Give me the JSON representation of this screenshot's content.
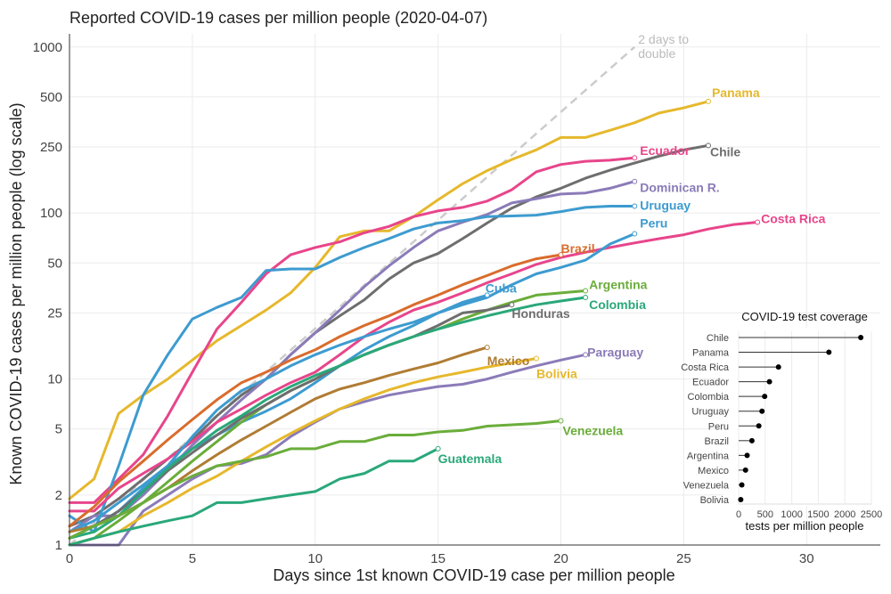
{
  "chart_data": {
    "type": "line",
    "title": "Reported COVID-19 cases per million people (2020-04-07)",
    "xlabel": "Days since 1st known COVID-19 case per million people",
    "ylabel": "Known COVID-19 cases per million people (log scale)",
    "y_scale": "log",
    "xlim": [
      0,
      33
    ],
    "ylim": [
      1,
      1200
    ],
    "x_ticks": [
      0,
      5,
      10,
      15,
      20,
      25,
      30
    ],
    "y_ticks": [
      1,
      2,
      5,
      10,
      25,
      50,
      100,
      250,
      500,
      1000
    ],
    "grid": true,
    "reference_line": {
      "label": "2 days to double",
      "label_lines": [
        "2 days to",
        "double"
      ],
      "color": "#cccccc",
      "x": [
        0,
        23
      ],
      "y": [
        1,
        1000
      ]
    },
    "series": [
      {
        "name": "Panama",
        "color": "#e6b82c",
        "x": [
          0,
          1,
          2,
          3,
          4,
          5,
          6,
          7,
          8,
          9,
          10,
          11,
          12,
          13,
          14,
          15,
          16,
          17,
          18,
          19,
          20,
          21,
          22,
          23,
          24,
          25,
          26
        ],
        "y": [
          1.9,
          2.5,
          6.2,
          8,
          10,
          13,
          17,
          21,
          26,
          33,
          47,
          72,
          78,
          78,
          95,
          120,
          150,
          180,
          210,
          240,
          285,
          285,
          315,
          350,
          400,
          430,
          470
        ]
      },
      {
        "name": "Chile",
        "color": "#6e6e6e",
        "x": [
          0,
          1,
          2,
          3,
          4,
          5,
          6,
          7,
          8,
          9,
          10,
          11,
          12,
          13,
          14,
          15,
          16,
          17,
          18,
          19,
          20,
          21,
          22,
          23,
          24,
          25,
          26
        ],
        "y": [
          1.3,
          1.5,
          1.9,
          2.5,
          3.3,
          4.3,
          6,
          8,
          10,
          14,
          19,
          24,
          30,
          40,
          50,
          57,
          70,
          87,
          107,
          125,
          141,
          162,
          181,
          200,
          220,
          240,
          255
        ]
      },
      {
        "name": "Ecuador",
        "color": "#e8458b",
        "x": [
          0,
          1,
          2,
          3,
          4,
          5,
          6,
          7,
          8,
          9,
          10,
          11,
          12,
          13,
          14,
          15,
          16,
          17,
          18,
          19,
          20,
          21,
          22,
          23
        ],
        "y": [
          1.8,
          1.8,
          2.5,
          3.5,
          6,
          11,
          20,
          29,
          43,
          56,
          62,
          67,
          76,
          83,
          95,
          103,
          108,
          118,
          138,
          177,
          196,
          205,
          208,
          215
        ]
      },
      {
        "name": "Dominican R.",
        "color": "#8b7bb8",
        "x": [
          0,
          1,
          2,
          3,
          4,
          5,
          6,
          7,
          8,
          9,
          10,
          11,
          12,
          13,
          14,
          15,
          16,
          17,
          18,
          19,
          20,
          21,
          22,
          23
        ],
        "y": [
          1.2,
          1.5,
          1.5,
          2.0,
          2.8,
          4.0,
          5.5,
          7.5,
          10,
          14,
          19,
          26,
          36,
          48,
          62,
          78,
          88,
          98,
          115,
          122,
          130,
          132,
          141,
          155
        ]
      },
      {
        "name": "Uruguay",
        "color": "#3d9bd0",
        "x": [
          0,
          1,
          2,
          3,
          4,
          5,
          6,
          7,
          8,
          9,
          10,
          11,
          12,
          13,
          14,
          15,
          16,
          17,
          18,
          19,
          20,
          21,
          22,
          23
        ],
        "y": [
          1.5,
          1.2,
          3.0,
          8.0,
          14,
          23,
          27,
          31,
          45,
          46,
          46,
          54,
          62,
          70,
          80,
          87,
          90,
          95,
          96,
          97,
          102,
          108,
          110,
          110
        ]
      },
      {
        "name": "Costa Rica",
        "color": "#e8458b",
        "x": [
          0,
          1,
          2,
          3,
          4,
          5,
          6,
          7,
          8,
          9,
          10,
          11,
          12,
          13,
          14,
          15,
          16,
          17,
          18,
          19,
          20,
          21,
          22,
          23,
          24,
          25,
          26,
          27,
          28
        ],
        "y": [
          1.6,
          1.6,
          2.2,
          2.7,
          3.3,
          4.2,
          5.5,
          6.6,
          8,
          9.5,
          11,
          14,
          18,
          22,
          26,
          29,
          33,
          38,
          43,
          49,
          54,
          58,
          62,
          66,
          70,
          74,
          80,
          85,
          88
        ]
      },
      {
        "name": "Peru",
        "color": "#3d9bd0",
        "x": [
          0,
          1,
          2,
          3,
          4,
          5,
          6,
          7,
          8,
          9,
          10,
          11,
          12,
          13,
          14,
          15,
          16,
          17,
          18,
          19,
          20,
          21,
          22,
          23
        ],
        "y": [
          1.2,
          1.4,
          1.8,
          2.3,
          3.0,
          3.8,
          4.6,
          5.5,
          6.4,
          7.6,
          9.5,
          12,
          15,
          18,
          21,
          25,
          28,
          31,
          37,
          43,
          47,
          52,
          65,
          75
        ]
      },
      {
        "name": "Brazil",
        "color": "#d96c2b",
        "x": [
          0,
          1,
          2,
          3,
          4,
          5,
          6,
          7,
          8,
          9,
          10,
          11,
          12,
          13,
          14,
          15,
          16,
          17,
          18,
          19,
          20
        ],
        "y": [
          1.3,
          1.7,
          2.4,
          3.2,
          4.3,
          5.7,
          7.5,
          9.5,
          11,
          13,
          15,
          18,
          21,
          24,
          28,
          32,
          37,
          42,
          48,
          53,
          56
        ]
      },
      {
        "name": "Cuba",
        "color": "#3d9bd0",
        "x": [
          0,
          1,
          2,
          3,
          4,
          5,
          6,
          7,
          8,
          9,
          10,
          11,
          12,
          13,
          14,
          15,
          16,
          17
        ],
        "y": [
          1.1,
          1.3,
          1.6,
          2.2,
          3.0,
          4.5,
          6.5,
          8.5,
          10,
          12,
          14,
          16,
          18,
          20,
          22,
          25,
          29,
          32
        ]
      },
      {
        "name": "Argentina",
        "color": "#6aad3a",
        "x": [
          0,
          1,
          2,
          3,
          4,
          5,
          6,
          7,
          8,
          9,
          10,
          11,
          12,
          13,
          14,
          15,
          16,
          17,
          18,
          19,
          20,
          21
        ],
        "y": [
          1.0,
          1.1,
          1.4,
          1.8,
          2.4,
          3.2,
          4.2,
          5.5,
          7,
          8.5,
          10,
          12,
          14,
          16,
          18,
          20,
          23,
          26,
          29,
          32,
          33,
          34
        ]
      },
      {
        "name": "Honduras",
        "color": "#6e6e6e",
        "x": [
          0,
          1,
          2,
          3,
          4,
          5,
          6,
          7,
          8,
          9,
          10,
          11,
          12,
          13,
          14,
          15,
          16,
          17,
          18
        ],
        "y": [
          1.1,
          1.3,
          1.6,
          2.1,
          2.8,
          3.6,
          4.6,
          5.8,
          7,
          8.5,
          10,
          12,
          14,
          16,
          18,
          21,
          25,
          26,
          28
        ]
      },
      {
        "name": "Colombia",
        "color": "#2aa87a",
        "x": [
          0,
          1,
          2,
          3,
          4,
          5,
          6,
          7,
          8,
          9,
          10,
          11,
          12,
          13,
          14,
          15,
          16,
          17,
          18,
          19,
          20,
          21
        ],
        "y": [
          1.1,
          1.2,
          1.5,
          2.1,
          2.9,
          3.8,
          4.9,
          6,
          7.5,
          9,
          10.5,
          12,
          14,
          16,
          18,
          20,
          22,
          24,
          26,
          28,
          29.5,
          31
        ]
      },
      {
        "name": "Paraguay",
        "color": "#8b7bb8",
        "x": [
          0,
          1,
          2,
          3,
          4,
          5,
          6,
          7,
          8,
          9,
          10,
          11,
          12,
          13,
          14,
          15,
          16,
          17,
          18,
          19,
          20,
          21
        ],
        "y": [
          1.0,
          1.0,
          1.0,
          1.6,
          2.0,
          2.5,
          3.0,
          3.1,
          3.5,
          4.5,
          5.5,
          6.6,
          7.3,
          8.0,
          8.5,
          9.0,
          9.3,
          10,
          11,
          12,
          13,
          14
        ]
      },
      {
        "name": "Mexico",
        "color": "#b07c34",
        "x": [
          0,
          1,
          2,
          3,
          4,
          5,
          6,
          7,
          8,
          9,
          10,
          11,
          12,
          13,
          14,
          15,
          16,
          17
        ],
        "y": [
          1.2,
          1.3,
          1.5,
          1.8,
          2.2,
          2.8,
          3.5,
          4.3,
          5.2,
          6.3,
          7.6,
          8.7,
          9.5,
          10.5,
          11.5,
          12.5,
          14,
          15.5
        ]
      },
      {
        "name": "Bolivia",
        "color": "#e6b82c",
        "x": [
          0,
          1,
          2,
          3,
          4,
          5,
          6,
          7,
          8,
          9,
          10,
          11,
          12,
          13,
          14,
          15,
          16,
          17,
          18,
          19
        ],
        "y": [
          1.0,
          1.1,
          1.2,
          1.5,
          1.8,
          2.2,
          2.6,
          3.2,
          3.9,
          4.7,
          5.6,
          6.6,
          7.6,
          8.6,
          9.5,
          10.3,
          11,
          11.8,
          12.5,
          13.3
        ]
      },
      {
        "name": "Venezuela",
        "color": "#6aad3a",
        "x": [
          0,
          1,
          2,
          3,
          4,
          5,
          6,
          7,
          8,
          9,
          10,
          11,
          12,
          13,
          14,
          15,
          16,
          17,
          18,
          19,
          20
        ],
        "y": [
          1.1,
          1.3,
          1.5,
          1.8,
          2.2,
          2.6,
          3.0,
          3.2,
          3.4,
          3.8,
          3.8,
          4.2,
          4.2,
          4.6,
          4.6,
          4.8,
          4.9,
          5.2,
          5.3,
          5.4,
          5.6
        ]
      },
      {
        "name": "Guatemala",
        "color": "#2aa87a",
        "x": [
          0,
          1,
          2,
          3,
          4,
          5,
          6,
          7,
          8,
          9,
          10,
          11,
          12,
          13,
          14,
          15
        ],
        "y": [
          1.0,
          1.1,
          1.2,
          1.3,
          1.4,
          1.5,
          1.8,
          1.8,
          1.9,
          2.0,
          2.1,
          2.5,
          2.7,
          3.2,
          3.2,
          3.8
        ]
      }
    ],
    "inset": {
      "title": "COVID-19 test coverage",
      "type": "lollipop",
      "xlabel": "tests per million people",
      "xlim": [
        0,
        2500
      ],
      "x_ticks": [
        0,
        500,
        1000,
        1500,
        2000,
        2500
      ],
      "categories": [
        "Chile",
        "Panama",
        "Costa Rica",
        "Ecuador",
        "Colombia",
        "Uruguay",
        "Peru",
        "Brazil",
        "Argentina",
        "Mexico",
        "Venezuela",
        "Bolivia"
      ],
      "values": [
        2300,
        1700,
        750,
        580,
        490,
        440,
        380,
        250,
        160,
        130,
        60,
        40
      ]
    }
  }
}
